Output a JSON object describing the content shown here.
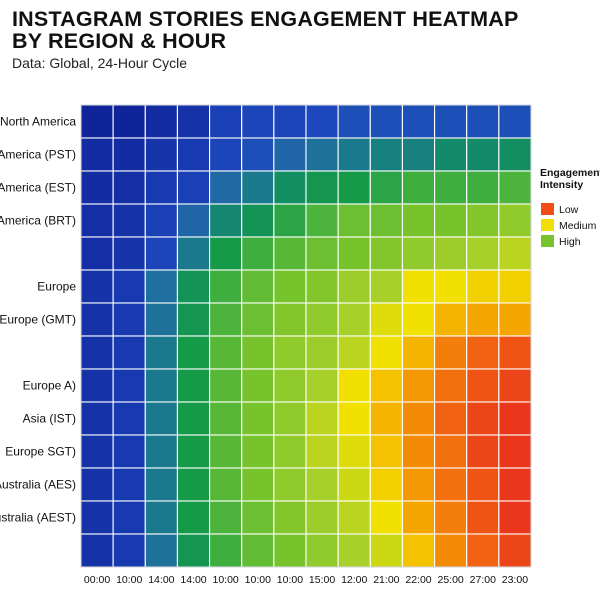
{
  "title_lines": [
    "INSTAGRAM STORIES ENGAGEMENT HEATMAP",
    "BY REGION & HOUR"
  ],
  "subtitle": "Data: Global, 24-Hour Cycle",
  "chart_data": {
    "type": "heatmap",
    "title": "INSTAGRAM STORIES ENGAGEMENT HEATMAP BY REGION & HOUR",
    "subtitle": "Data: Global, 24-Hour Cycle",
    "x_tick_labels": [
      "00:00",
      "10:00",
      "14:00",
      "14:00",
      "10:00",
      "10:00",
      "10:00",
      "15:00",
      "12:00",
      "21:00",
      "22:00",
      "25:00",
      "27:00",
      "23:00"
    ],
    "row_labels": [
      "North America",
      "America (PST)",
      "America (EST)",
      "America (BRT)",
      "",
      "Europe",
      "Europe (GMT)",
      "",
      "Europe A)",
      "Asia (IST)",
      "Europe SGT)",
      "Australia (AES)",
      "Australia (AEST)",
      ""
    ],
    "color_scale": [
      {
        "stop": 0.0,
        "color": "#10249a"
      },
      {
        "stop": 0.13,
        "color": "#1d48bd"
      },
      {
        "stop": 0.25,
        "color": "#1f6fa0"
      },
      {
        "stop": 0.33,
        "color": "#138a6a"
      },
      {
        "stop": 0.42,
        "color": "#159a48"
      },
      {
        "stop": 0.5,
        "color": "#4cb43c"
      },
      {
        "stop": 0.58,
        "color": "#77c32c"
      },
      {
        "stop": 0.66,
        "color": "#a8d02a"
      },
      {
        "stop": 0.74,
        "color": "#f2e000"
      },
      {
        "stop": 0.82,
        "color": "#f5a500"
      },
      {
        "stop": 0.91,
        "color": "#f26a10"
      },
      {
        "stop": 1.0,
        "color": "#e8281e"
      }
    ],
    "values": [
      [
        0.0,
        0.0,
        0.03,
        0.05,
        0.1,
        0.12,
        0.12,
        0.13,
        0.15,
        0.15,
        0.15,
        0.15,
        0.15,
        0.15
      ],
      [
        0.03,
        0.03,
        0.06,
        0.08,
        0.12,
        0.15,
        0.22,
        0.26,
        0.28,
        0.3,
        0.3,
        0.33,
        0.33,
        0.35
      ],
      [
        0.03,
        0.04,
        0.08,
        0.1,
        0.23,
        0.28,
        0.35,
        0.4,
        0.42,
        0.45,
        0.48,
        0.48,
        0.48,
        0.5
      ],
      [
        0.04,
        0.05,
        0.1,
        0.22,
        0.32,
        0.38,
        0.45,
        0.5,
        0.56,
        0.56,
        0.58,
        0.58,
        0.6,
        0.62
      ],
      [
        0.04,
        0.06,
        0.12,
        0.28,
        0.42,
        0.48,
        0.52,
        0.56,
        0.58,
        0.6,
        0.62,
        0.64,
        0.66,
        0.68
      ],
      [
        0.05,
        0.08,
        0.25,
        0.38,
        0.48,
        0.54,
        0.58,
        0.6,
        0.64,
        0.66,
        0.74,
        0.74,
        0.76,
        0.76
      ],
      [
        0.05,
        0.08,
        0.26,
        0.4,
        0.5,
        0.56,
        0.6,
        0.62,
        0.66,
        0.72,
        0.74,
        0.8,
        0.82,
        0.82
      ],
      [
        0.05,
        0.08,
        0.28,
        0.42,
        0.52,
        0.58,
        0.62,
        0.64,
        0.68,
        0.74,
        0.8,
        0.88,
        0.92,
        0.94
      ],
      [
        0.05,
        0.08,
        0.28,
        0.42,
        0.52,
        0.58,
        0.62,
        0.66,
        0.74,
        0.78,
        0.84,
        0.9,
        0.94,
        0.96
      ],
      [
        0.05,
        0.08,
        0.28,
        0.42,
        0.52,
        0.58,
        0.62,
        0.68,
        0.74,
        0.8,
        0.86,
        0.92,
        0.96,
        0.98
      ],
      [
        0.05,
        0.08,
        0.28,
        0.42,
        0.52,
        0.58,
        0.62,
        0.68,
        0.72,
        0.78,
        0.86,
        0.9,
        0.96,
        0.98
      ],
      [
        0.05,
        0.08,
        0.28,
        0.42,
        0.52,
        0.58,
        0.62,
        0.66,
        0.7,
        0.76,
        0.84,
        0.9,
        0.94,
        0.98
      ],
      [
        0.05,
        0.08,
        0.28,
        0.42,
        0.5,
        0.56,
        0.6,
        0.64,
        0.68,
        0.74,
        0.82,
        0.88,
        0.94,
        0.98
      ],
      [
        0.05,
        0.08,
        0.26,
        0.4,
        0.48,
        0.54,
        0.58,
        0.62,
        0.66,
        0.7,
        0.78,
        0.86,
        0.92,
        0.96
      ]
    ],
    "legend": {
      "title": [
        "Engagement",
        "Intensity"
      ],
      "placement": "right",
      "items": [
        {
          "label": "Low",
          "color": "#f24d14"
        },
        {
          "label": "Medium",
          "color": "#f0df00"
        },
        {
          "label": "High",
          "color": "#77c32c"
        }
      ]
    },
    "grid": true
  }
}
